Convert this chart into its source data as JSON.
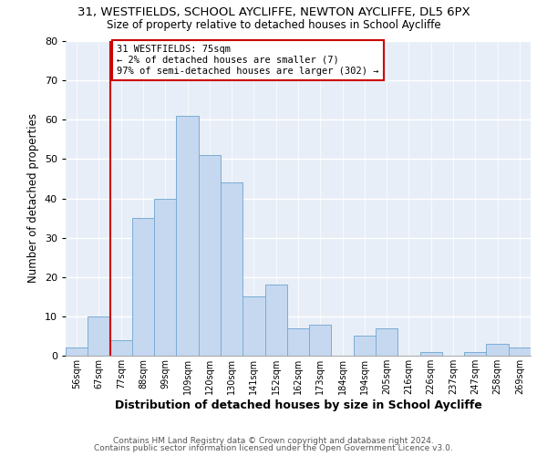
{
  "title1": "31, WESTFIELDS, SCHOOL AYCLIFFE, NEWTON AYCLIFFE, DL5 6PX",
  "title2": "Size of property relative to detached houses in School Aycliffe",
  "xlabel": "Distribution of detached houses by size in School Aycliffe",
  "ylabel": "Number of detached properties",
  "bin_labels": [
    "56sqm",
    "67sqm",
    "77sqm",
    "88sqm",
    "99sqm",
    "109sqm",
    "120sqm",
    "130sqm",
    "141sqm",
    "152sqm",
    "162sqm",
    "173sqm",
    "184sqm",
    "194sqm",
    "205sqm",
    "216sqm",
    "226sqm",
    "237sqm",
    "247sqm",
    "258sqm",
    "269sqm"
  ],
  "bar_heights": [
    2,
    10,
    4,
    35,
    40,
    61,
    51,
    44,
    15,
    18,
    7,
    8,
    0,
    5,
    7,
    0,
    1,
    0,
    1,
    3,
    2
  ],
  "bar_color": "#c5d8f0",
  "bar_edge_color": "#7aadd4",
  "vline_x": 2,
  "vline_color": "#cc0000",
  "ylim": [
    0,
    80
  ],
  "yticks": [
    0,
    10,
    20,
    30,
    40,
    50,
    60,
    70,
    80
  ],
  "annotation_title": "31 WESTFIELDS: 75sqm",
  "annotation_line1": "← 2% of detached houses are smaller (7)",
  "annotation_line2": "97% of semi-detached houses are larger (302) →",
  "footer1": "Contains HM Land Registry data © Crown copyright and database right 2024.",
  "footer2": "Contains public sector information licensed under the Open Government Licence v3.0.",
  "bg_color": "#ffffff",
  "plot_bg_color": "#e8eef7"
}
